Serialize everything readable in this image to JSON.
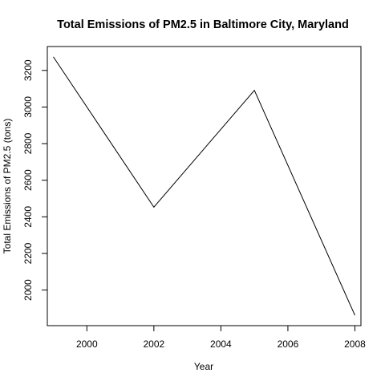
{
  "chart_data": {
    "type": "line",
    "title": "Total Emissions of PM2.5 in Baltimore City, Maryland",
    "xlabel": "Year",
    "ylabel": "Total Emissions of PM2.5 (tons)",
    "x": [
      1999,
      2002,
      2005,
      2008
    ],
    "series": [
      {
        "values": [
          3274,
          2453,
          3091,
          1862
        ]
      }
    ],
    "xlim": [
      1998.82,
      2008.18
    ],
    "ylim": [
      1805.5,
      3330.5
    ],
    "xticks": [
      2000,
      2002,
      2004,
      2006,
      2008
    ],
    "yticks": [
      2000,
      2200,
      2400,
      2600,
      2800,
      3000,
      3200
    ],
    "grid": false,
    "legend": "none",
    "line_color": "#000000"
  }
}
